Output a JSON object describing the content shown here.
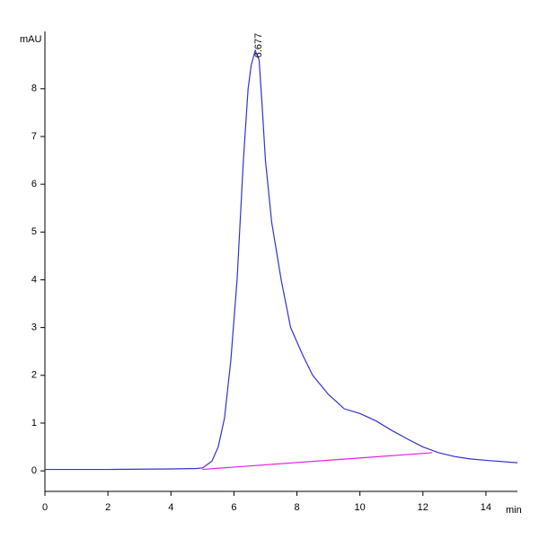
{
  "chart_data": {
    "type": "line",
    "y_label": "mAU",
    "x_label": "min",
    "x": [
      0,
      2,
      4,
      4.8,
      5.0,
      5.3,
      5.5,
      5.7,
      5.9,
      6.1,
      6.3,
      6.45,
      6.55,
      6.677,
      6.8,
      6.9,
      7.0,
      7.2,
      7.5,
      7.8,
      8.2,
      8.5,
      9.0,
      9.5,
      10,
      10.5,
      11,
      11.5,
      12,
      12.5,
      13,
      13.5,
      14,
      15
    ],
    "series": [
      {
        "color": "#3333cc",
        "values": [
          0.03,
          0.03,
          0.04,
          0.05,
          0.06,
          0.2,
          0.5,
          1.1,
          2.3,
          4.0,
          6.5,
          8.0,
          8.5,
          8.8,
          8.6,
          7.6,
          6.5,
          5.2,
          4.0,
          3.0,
          2.4,
          2.0,
          1.6,
          1.3,
          1.2,
          1.05,
          0.85,
          0.67,
          0.5,
          0.38,
          0.3,
          0.25,
          0.22,
          0.17
        ]
      }
    ],
    "baseline": {
      "color": "#e020e0",
      "x": [
        5.0,
        12.3
      ],
      "values": [
        0.03,
        0.38
      ]
    },
    "peak_labels": [
      6.677
    ],
    "xlim": [
      0,
      15
    ],
    "ylim": [
      -0.43,
      9.2
    ],
    "xticks": [
      0,
      2,
      4,
      6,
      8,
      10,
      12,
      14
    ],
    "yticks": [
      0,
      1,
      2,
      3,
      4,
      5,
      6,
      7,
      8
    ]
  }
}
